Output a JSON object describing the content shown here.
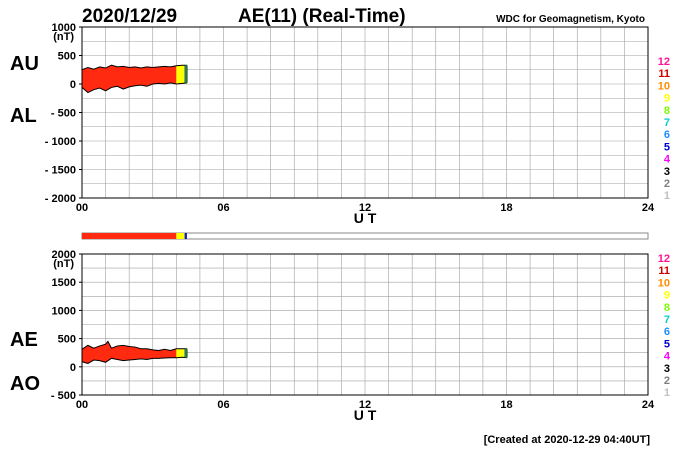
{
  "header": {
    "date": "2020/12/29",
    "title": "AE(11) (Real-Time)",
    "credit": "WDC for Geomagnetism, Kyoto"
  },
  "footer": {
    "created": "[Created at 2020-12-29 04:40UT]"
  },
  "colors": {
    "grid": "#a0a0a0",
    "fill_main": "#ff2a10",
    "fill_yellow": "#ffff00",
    "fill_green": "#1a8a3a",
    "fill_blue": "#1020c0",
    "line": "#000000"
  },
  "legend": {
    "numbers": [
      "12",
      "11",
      "10",
      "9",
      "8",
      "7",
      "6",
      "5",
      "4",
      "3",
      "2",
      "1"
    ],
    "colors": [
      "#ff1493",
      "#d00000",
      "#ff8c00",
      "#ffff00",
      "#7cfc00",
      "#00ced1",
      "#1e90ff",
      "#0000cd",
      "#ff00ff",
      "#000000",
      "#808080",
      "#c0c0c0"
    ]
  },
  "chart_data": [
    {
      "type": "area",
      "name": "AU/AL panel",
      "labels": {
        "upper": "AU",
        "lower": "AL"
      },
      "xlabel": "U T",
      "unit": "(nT)",
      "xlim": [
        0,
        24
      ],
      "x_ticks": [
        "00",
        "06",
        "12",
        "18",
        "24"
      ],
      "ylim": [
        -2000,
        1000
      ],
      "y_ticks": [
        "1000",
        "500",
        "0",
        "- 500",
        "- 1000",
        "- 1500",
        "- 2000"
      ],
      "y_tick_values": [
        1000,
        500,
        0,
        -500,
        -1000,
        -1500,
        -2000
      ],
      "data_end_hour": 4.45,
      "color_segments_hours": [
        {
          "from": 0,
          "to": 4.0,
          "color": "#ff2a10"
        },
        {
          "from": 4.0,
          "to": 4.35,
          "color": "#ffff00"
        },
        {
          "from": 4.35,
          "to": 4.45,
          "color": "#1020c0"
        }
      ],
      "series": [
        {
          "key": "AU",
          "x": [
            0,
            0.25,
            0.5,
            0.75,
            1,
            1.25,
            1.5,
            1.75,
            2,
            2.25,
            2.5,
            2.75,
            3,
            3.25,
            3.5,
            3.75,
            4,
            4.25,
            4.45
          ],
          "y": [
            250,
            290,
            260,
            300,
            280,
            330,
            300,
            310,
            290,
            300,
            280,
            300,
            290,
            300,
            310,
            300,
            320,
            330,
            330
          ]
        },
        {
          "key": "AL",
          "x": [
            0,
            0.25,
            0.5,
            0.75,
            1,
            1.25,
            1.5,
            1.75,
            2,
            2.25,
            2.5,
            2.75,
            3,
            3.25,
            3.5,
            3.75,
            4,
            4.25,
            4.45
          ],
          "y": [
            -60,
            -150,
            -100,
            -70,
            -120,
            -60,
            -40,
            -90,
            -50,
            -30,
            -20,
            -40,
            0,
            10,
            0,
            20,
            0,
            10,
            20
          ]
        }
      ]
    },
    {
      "type": "area",
      "name": "AE/AO panel",
      "labels": {
        "upper": "AE",
        "lower": "AO"
      },
      "xlabel": "U T",
      "unit": "(nT)",
      "xlim": [
        0,
        24
      ],
      "x_ticks": [
        "00",
        "06",
        "12",
        "18",
        "24"
      ],
      "ylim": [
        -500,
        2000
      ],
      "y_ticks": [
        "2000",
        "1500",
        "1000",
        "500",
        "0",
        "- 500"
      ],
      "y_tick_values": [
        2000,
        1500,
        1000,
        500,
        0,
        -500
      ],
      "data_end_hour": 4.45,
      "color_segments_hours": [
        {
          "from": 0,
          "to": 4.0,
          "color": "#ff2a10"
        },
        {
          "from": 4.0,
          "to": 4.35,
          "color": "#ffff00"
        },
        {
          "from": 4.35,
          "to": 4.45,
          "color": "#1020c0"
        }
      ],
      "series": [
        {
          "key": "AE",
          "x": [
            0,
            0.25,
            0.5,
            0.75,
            1,
            1.1,
            1.25,
            1.5,
            1.75,
            2,
            2.25,
            2.5,
            2.75,
            3,
            3.25,
            3.5,
            3.75,
            4,
            4.25,
            4.45
          ],
          "y": [
            310,
            380,
            330,
            370,
            400,
            450,
            330,
            370,
            380,
            360,
            350,
            320,
            320,
            300,
            290,
            310,
            290,
            320,
            320,
            320
          ]
        },
        {
          "key": "AO",
          "x": [
            0,
            0.25,
            0.5,
            0.75,
            1,
            1.25,
            1.5,
            1.75,
            2,
            2.25,
            2.5,
            2.75,
            3,
            3.25,
            3.5,
            3.75,
            4,
            4.25,
            4.45
          ],
          "y": [
            90,
            60,
            120,
            110,
            80,
            150,
            130,
            110,
            120,
            130,
            140,
            130,
            150,
            150,
            155,
            160,
            160,
            170,
            160
          ]
        }
      ]
    }
  ],
  "coverage_bar": {
    "end_hour": 4.45,
    "segments_hours": [
      {
        "from": 0,
        "to": 4.0,
        "color": "#ff2a10"
      },
      {
        "from": 4.0,
        "to": 4.35,
        "color": "#ffff00"
      },
      {
        "from": 4.35,
        "to": 4.45,
        "color": "#1020c0"
      }
    ]
  }
}
